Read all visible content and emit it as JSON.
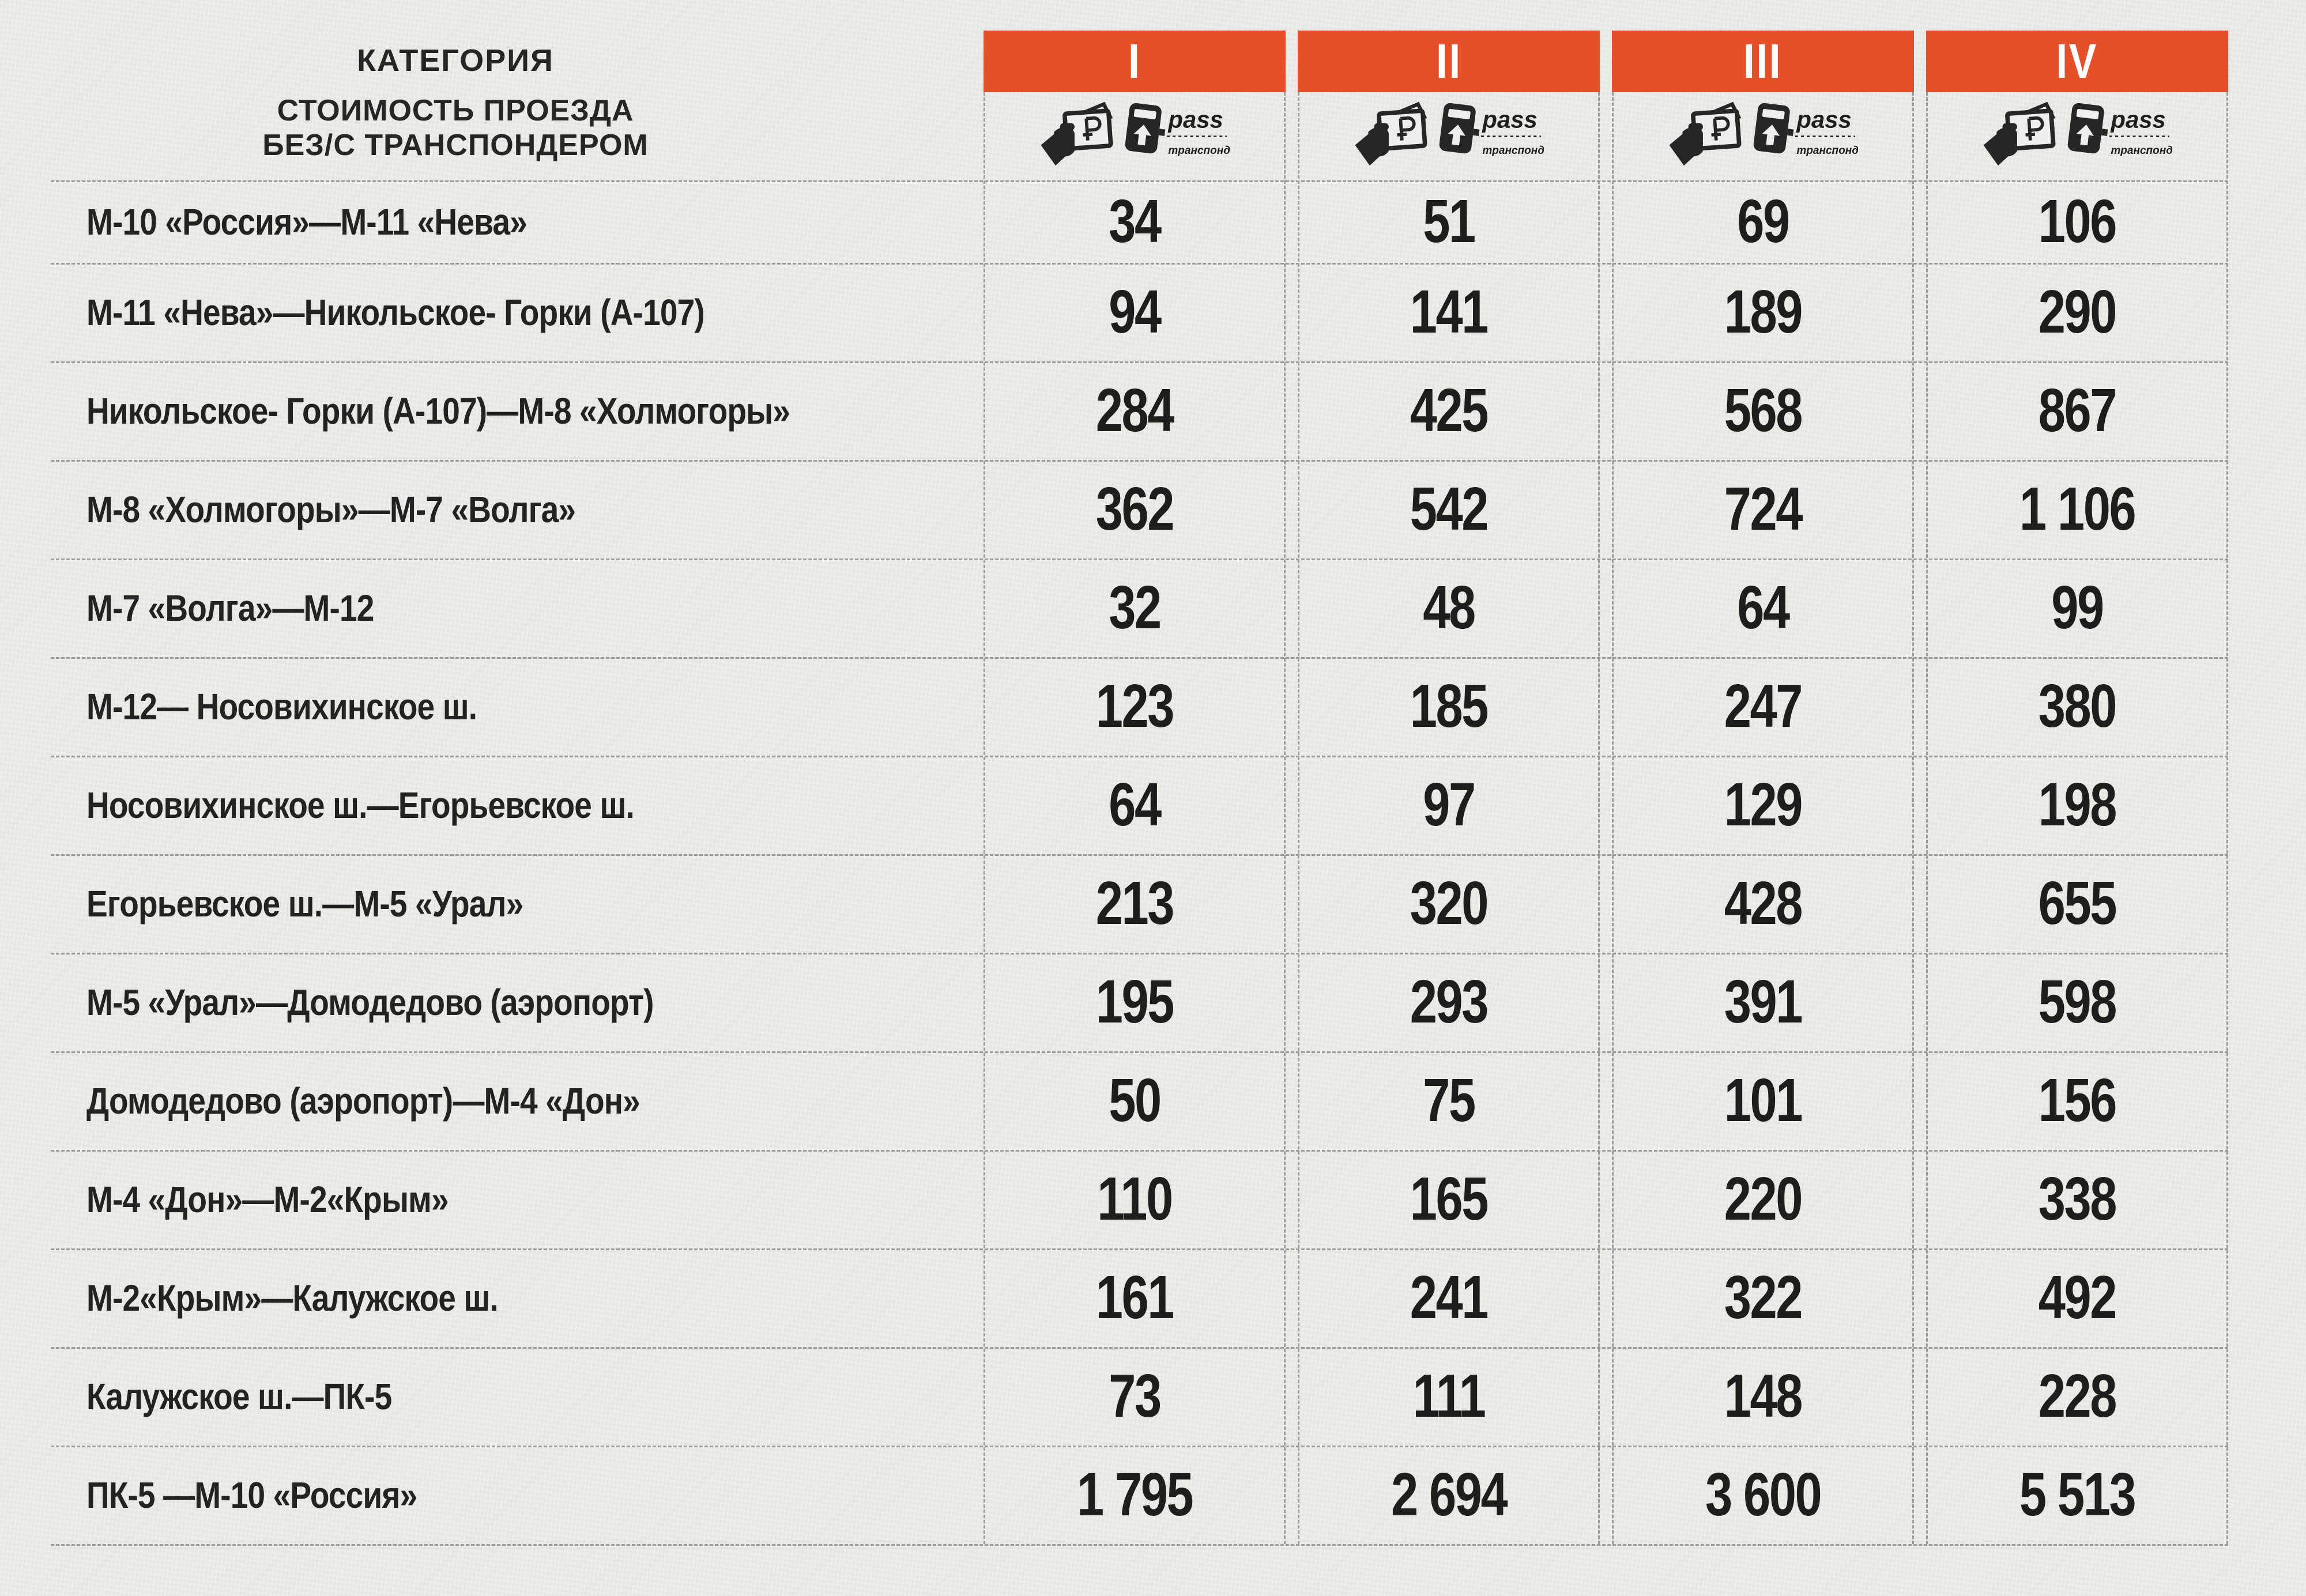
{
  "header": {
    "category_label": "КАТЕГОРИЯ",
    "subtitle_line1": "СТОИМОСТЬ ПРОЕЗДА",
    "subtitle_line2": "БЕЗ/С ТРАНСПОНДЕРОМ",
    "columns": [
      "I",
      "II",
      "III",
      "IV"
    ],
    "pass_label": "pass",
    "transponder_label": "транспондер",
    "colors": {
      "accent": "#e5502a",
      "text": "#1e1e1c",
      "paper": "#edebe8",
      "dash": "#9c9c9c"
    }
  },
  "table": {
    "type": "table",
    "column_headers": [
      "I",
      "II",
      "III",
      "IV"
    ],
    "rows": [
      {
        "label": "М-10 «Россия»—М-11 «Нева»",
        "values": [
          "34",
          "51",
          "69",
          "106"
        ]
      },
      {
        "label": "М-11 «Нева»—Никольское- Горки (А-107)",
        "values": [
          "94",
          "141",
          "189",
          "290"
        ]
      },
      {
        "label": "Никольское- Горки (А-107)—М-8 «Холмогоры»",
        "values": [
          "284",
          "425",
          "568",
          "867"
        ]
      },
      {
        "label": "М-8 «Холмогоры»—М-7 «Волга»",
        "values": [
          "362",
          "542",
          "724",
          "1 106"
        ]
      },
      {
        "label": "М-7 «Волга»—М-12",
        "values": [
          "32",
          "48",
          "64",
          "99"
        ]
      },
      {
        "label": "М-12— Носовихинское ш.",
        "values": [
          "123",
          "185",
          "247",
          "380"
        ]
      },
      {
        "label": "Носовихинское ш.—Егорьевское ш.",
        "values": [
          "64",
          "97",
          "129",
          "198"
        ]
      },
      {
        "label": "Егорьевское ш.—М-5 «Урал»",
        "values": [
          "213",
          "320",
          "428",
          "655"
        ]
      },
      {
        "label": "М-5 «Урал»—Домодедово (аэропорт)",
        "values": [
          "195",
          "293",
          "391",
          "598"
        ]
      },
      {
        "label": "Домодедово (аэропорт)—М-4 «Дон»",
        "values": [
          "50",
          "75",
          "101",
          "156"
        ]
      },
      {
        "label": "М-4 «Дон»—М-2«Крым»",
        "values": [
          "110",
          "165",
          "220",
          "338"
        ]
      },
      {
        "label": "М-2«Крым»—Калужское ш.",
        "values": [
          "161",
          "241",
          "322",
          "492"
        ]
      },
      {
        "label": "Калужское ш.—ПК-5",
        "values": [
          "73",
          "111",
          "148",
          "228"
        ]
      },
      {
        "label": "ПК-5 —М-10 «Россия»",
        "values": [
          "1 795",
          "2 694",
          "3 600",
          "5 513"
        ]
      }
    ]
  }
}
